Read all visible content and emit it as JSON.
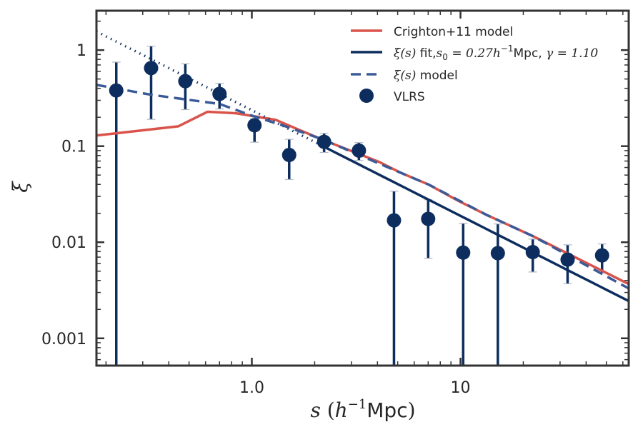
{
  "chart_data": {
    "type": "scatter",
    "title": "",
    "xlabel": "s (h^-1 Mpc)",
    "xlabel_parts": {
      "var": "s",
      "open": " (",
      "h": "h",
      "exp": "−1",
      "unit": "Mpc",
      "close": ")"
    },
    "ylabel": "ξ",
    "xscale": "log",
    "yscale": "log",
    "xlim": [
      0.18,
      64
    ],
    "ylim": [
      0.00052,
      2.57
    ],
    "grid": false,
    "legend_position": "top-right",
    "x_ticks": [
      {
        "value": 1.0,
        "label": "1.0"
      },
      {
        "value": 10,
        "label": "10"
      }
    ],
    "y_ticks": [
      {
        "value": 1,
        "label": "1"
      },
      {
        "value": 0.1,
        "label": "0.1"
      },
      {
        "value": 0.01,
        "label": "0.01"
      },
      {
        "value": 0.001,
        "label": "0.001"
      }
    ],
    "colors": {
      "crighton": "#d9534a",
      "fit": "#0d2d5e",
      "model": "#3a5a98",
      "points": "#0d2d5e",
      "caps": "#b0b8c4",
      "axes": "#333333"
    },
    "series": [
      {
        "name": "Crighton+11 model",
        "kind": "line",
        "x": [
          0.18,
          0.444,
          0.613,
          0.84,
          1.3,
          1.71,
          2.22,
          4.07,
          5.16,
          7.06,
          9.7,
          13.3,
          22.2,
          64
        ],
        "y": [
          0.129,
          0.161,
          0.228,
          0.22,
          0.188,
          0.146,
          0.115,
          0.0686,
          0.053,
          0.0397,
          0.0272,
          0.0193,
          0.0116,
          0.00367
        ]
      },
      {
        "name": "ξ(s) fit, s0 = 0.27 h^-1 Mpc, γ = 1.10",
        "kind": "powerlaw",
        "s0": 0.27,
        "gamma": 1.1,
        "solid_range": [
          2.22,
          64
        ],
        "dotted_range": [
          0.18,
          2.22
        ]
      },
      {
        "name": "ξ(s) model",
        "kind": "dashed-line",
        "x": [
          0.18,
          0.329,
          0.7,
          1.02,
          1.4,
          2.22,
          4.07,
          7.06,
          13.3,
          22.2,
          64
        ],
        "y": [
          0.435,
          0.343,
          0.275,
          0.205,
          0.165,
          0.116,
          0.066,
          0.0397,
          0.0193,
          0.0116,
          0.0033
        ]
      },
      {
        "name": "VLRS",
        "kind": "errorbar",
        "x": [
          0.224,
          0.329,
          0.48,
          0.7,
          1.03,
          1.51,
          2.22,
          3.26,
          4.8,
          7.0,
          10.3,
          15.1,
          22.2,
          32.6,
          47.7
        ],
        "y": [
          0.38,
          0.65,
          0.475,
          0.35,
          0.165,
          0.081,
          0.111,
          0.09,
          0.0169,
          0.0175,
          0.0078,
          0.0077,
          0.0079,
          0.0066,
          0.0073
        ],
        "y_upper": [
          0.75,
          1.1,
          0.72,
          0.45,
          0.195,
          0.118,
          0.136,
          0.109,
          0.034,
          0.0277,
          0.0157,
          0.0155,
          0.0108,
          0.0094,
          0.0096
        ],
        "y_lower": [
          null,
          0.19,
          0.24,
          0.244,
          0.11,
          0.045,
          0.086,
          0.071,
          null,
          0.0068,
          null,
          null,
          0.0049,
          0.0037,
          0.0048
        ]
      }
    ],
    "legend": [
      {
        "key": "crighton",
        "label": "Crighton+11 model"
      },
      {
        "key": "fit",
        "label_math": "ξ(s)",
        "label_text": " fit,",
        "label_math2": "s",
        "label_sub": "0",
        "label_rest": " = 0.27",
        "label_h": "h",
        "label_exp": "−1",
        "label_unit": "Mpc, ",
        "label_gamma": "γ = 1.10"
      },
      {
        "key": "model",
        "label_math": "ξ(s)",
        "label_text": " model"
      },
      {
        "key": "points",
        "label": "VLRS"
      }
    ]
  }
}
